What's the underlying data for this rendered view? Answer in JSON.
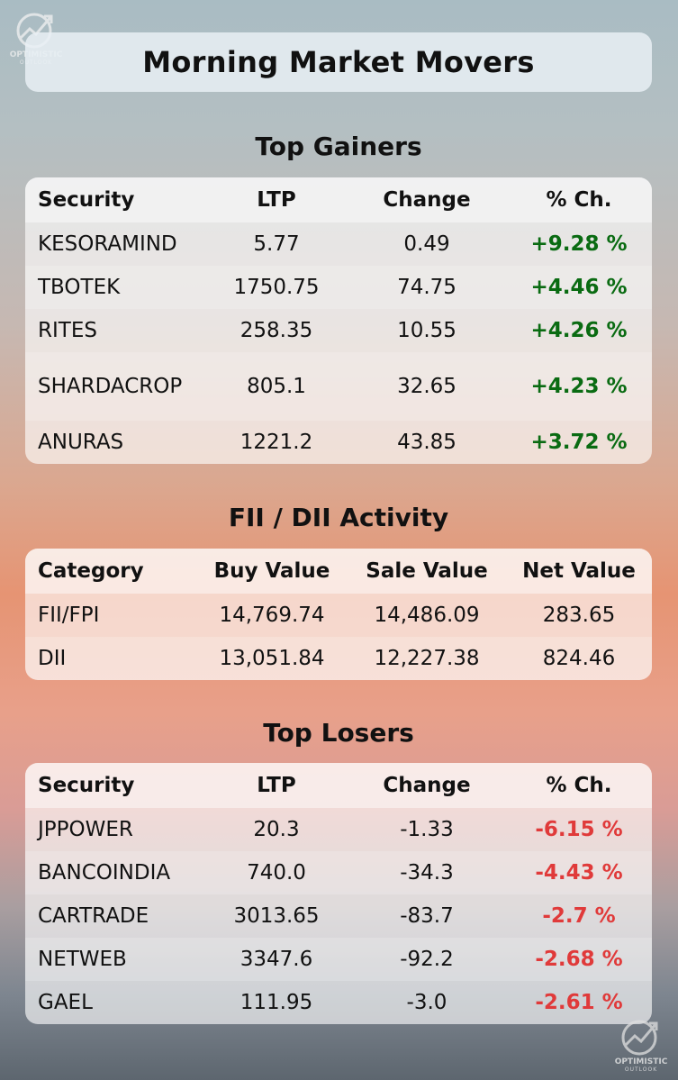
{
  "logo": {
    "name": "OPTIMISTIC",
    "sub": "OUTLOOK"
  },
  "title": "Morning Market Movers",
  "gainers": {
    "title": "Top Gainers",
    "headers": [
      "Security",
      "LTP",
      "Change",
      "% Ch."
    ],
    "rows": [
      [
        "KESORAMIND",
        "5.77",
        "0.49",
        "+9.28 %"
      ],
      [
        "TBOTEK",
        "1750.75",
        "74.75",
        "+4.46 %"
      ],
      [
        "RITES",
        "258.35",
        "10.55",
        "+4.26 %"
      ],
      [
        "SHARDACROP",
        "805.1",
        "32.65",
        "+4.23 %"
      ],
      [
        "ANURAS",
        "1221.2",
        "43.85",
        "+3.72 %"
      ]
    ]
  },
  "fii_dii": {
    "title": "FII / DII Activity",
    "headers": [
      "Category",
      "Buy Value",
      "Sale Value",
      "Net Value"
    ],
    "rows": [
      [
        "FII/FPI",
        "14,769.74",
        "14,486.09",
        "283.65"
      ],
      [
        "DII",
        "13,051.84",
        "12,227.38",
        "824.46"
      ]
    ]
  },
  "losers": {
    "title": "Top Losers",
    "headers": [
      "Security",
      "LTP",
      "Change",
      "% Ch."
    ],
    "rows": [
      [
        "JPPOWER",
        "20.3",
        "-1.33",
        "-6.15 %"
      ],
      [
        "BANCOINDIA",
        "740.0",
        "-34.3",
        "-4.43 %"
      ],
      [
        "CARTRADE",
        "3013.65",
        "-83.7",
        "-2.7 %"
      ],
      [
        "NETWEB",
        "3347.6",
        "-92.2",
        "-2.68 %"
      ],
      [
        "GAEL",
        "111.95",
        "-3.0",
        "-2.61 %"
      ]
    ]
  },
  "colors": {
    "gain": "#0a6b12",
    "loss": "#e03a3a"
  }
}
